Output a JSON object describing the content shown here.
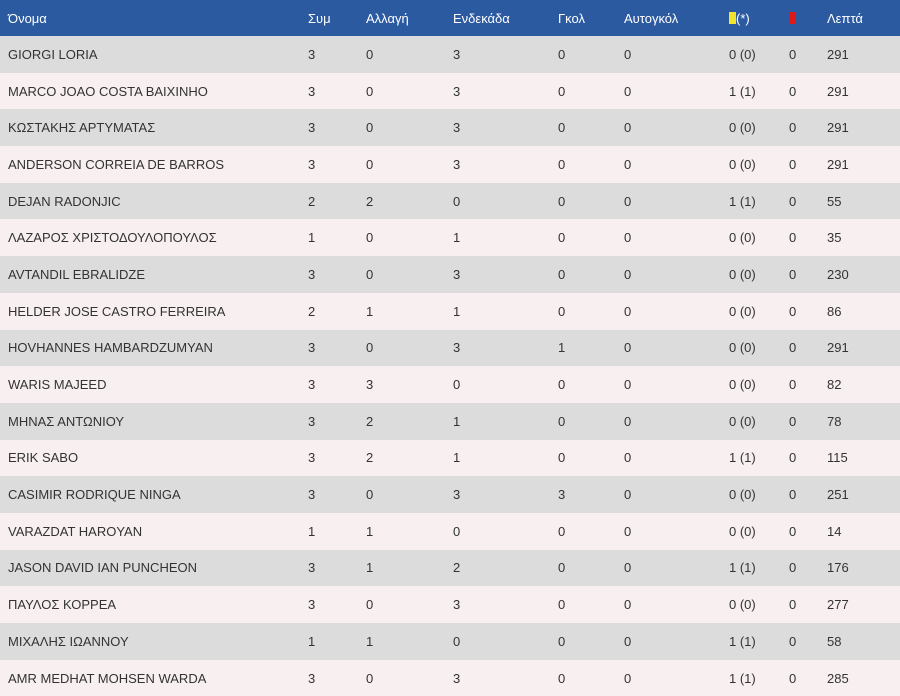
{
  "table": {
    "headers": {
      "name": "Όνομα",
      "apps": "Συμ",
      "subs": "Αλλαγή",
      "starts": "Ενδεκάδα",
      "goals": "Γκολ",
      "own_goals": "Αυτογκόλ",
      "yellow_suffix": "(*)",
      "yellow_icon": "yellow-card-icon",
      "red_icon": "red-card-icon",
      "minutes": "Λεπτά"
    },
    "colors": {
      "header_bg": "#2c5aa0",
      "row_odd": "#dcdcdc",
      "row_even": "#f7eff0",
      "yellow_card": "#f1e42a",
      "red_card": "#e01818"
    },
    "rows": [
      {
        "name": "GIORGI LORIA",
        "apps": "3",
        "subs": "0",
        "starts": "3",
        "goals": "0",
        "own_goals": "0",
        "yellow": "0 (0)",
        "red": "0",
        "minutes": "291"
      },
      {
        "name": "MARCO JOAO COSTA BAIXINHO",
        "apps": "3",
        "subs": "0",
        "starts": "3",
        "goals": "0",
        "own_goals": "0",
        "yellow": "1 (1)",
        "red": "0",
        "minutes": "291"
      },
      {
        "name": "ΚΩΣΤΑΚΗΣ ΑΡΤΥΜΑΤΑΣ",
        "apps": "3",
        "subs": "0",
        "starts": "3",
        "goals": "0",
        "own_goals": "0",
        "yellow": "0 (0)",
        "red": "0",
        "minutes": "291"
      },
      {
        "name": "ANDERSON CORREIA DE BARROS",
        "apps": "3",
        "subs": "0",
        "starts": "3",
        "goals": "0",
        "own_goals": "0",
        "yellow": "0 (0)",
        "red": "0",
        "minutes": "291"
      },
      {
        "name": "DEJAN RADONJIC",
        "apps": "2",
        "subs": "2",
        "starts": "0",
        "goals": "0",
        "own_goals": "0",
        "yellow": "1 (1)",
        "red": "0",
        "minutes": "55"
      },
      {
        "name": "ΛΑΖΑΡΟΣ ΧΡΙΣΤΟΔΟΥΛΟΠΟΥΛΟΣ",
        "apps": "1",
        "subs": "0",
        "starts": "1",
        "goals": "0",
        "own_goals": "0",
        "yellow": "0 (0)",
        "red": "0",
        "minutes": "35"
      },
      {
        "name": "AVTANDIL EBRALIDZE",
        "apps": "3",
        "subs": "0",
        "starts": "3",
        "goals": "0",
        "own_goals": "0",
        "yellow": "0 (0)",
        "red": "0",
        "minutes": "230"
      },
      {
        "name": "HELDER JOSE CASTRO FERREIRA",
        "apps": "2",
        "subs": "1",
        "starts": "1",
        "goals": "0",
        "own_goals": "0",
        "yellow": "0 (0)",
        "red": "0",
        "minutes": "86"
      },
      {
        "name": "HOVHANNES HAMBARDZUMYAN",
        "apps": "3",
        "subs": "0",
        "starts": "3",
        "goals": "1",
        "own_goals": "0",
        "yellow": "0 (0)",
        "red": "0",
        "minutes": "291"
      },
      {
        "name": "WARIS MAJEED",
        "apps": "3",
        "subs": "3",
        "starts": "0",
        "goals": "0",
        "own_goals": "0",
        "yellow": "0 (0)",
        "red": "0",
        "minutes": "82"
      },
      {
        "name": "ΜΗΝΑΣ ΑΝΤΩΝΙΟΥ",
        "apps": "3",
        "subs": "2",
        "starts": "1",
        "goals": "0",
        "own_goals": "0",
        "yellow": "0 (0)",
        "red": "0",
        "minutes": "78"
      },
      {
        "name": "ERIK SABO",
        "apps": "3",
        "subs": "2",
        "starts": "1",
        "goals": "0",
        "own_goals": "0",
        "yellow": "1 (1)",
        "red": "0",
        "minutes": "115"
      },
      {
        "name": "CASIMIR RODRIQUE NINGA",
        "apps": "3",
        "subs": "0",
        "starts": "3",
        "goals": "3",
        "own_goals": "0",
        "yellow": "0 (0)",
        "red": "0",
        "minutes": "251"
      },
      {
        "name": "VARAZDAT HAROYAN",
        "apps": "1",
        "subs": "1",
        "starts": "0",
        "goals": "0",
        "own_goals": "0",
        "yellow": "0 (0)",
        "red": "0",
        "minutes": "14"
      },
      {
        "name": "JASON DAVID IAN PUNCHEON",
        "apps": "3",
        "subs": "1",
        "starts": "2",
        "goals": "0",
        "own_goals": "0",
        "yellow": "1 (1)",
        "red": "0",
        "minutes": "176"
      },
      {
        "name": "ΠΑΥΛΟΣ ΚΟΡΡΕΑ",
        "apps": "3",
        "subs": "0",
        "starts": "3",
        "goals": "0",
        "own_goals": "0",
        "yellow": "0 (0)",
        "red": "0",
        "minutes": "277"
      },
      {
        "name": "ΜΙΧΑΛΗΣ ΙΩΑΝΝΟΥ",
        "apps": "1",
        "subs": "1",
        "starts": "0",
        "goals": "0",
        "own_goals": "0",
        "yellow": "1 (1)",
        "red": "0",
        "minutes": "58"
      },
      {
        "name": "AMR MEDHAT MOHSEN WARDA",
        "apps": "3",
        "subs": "0",
        "starts": "3",
        "goals": "0",
        "own_goals": "0",
        "yellow": "1 (1)",
        "red": "0",
        "minutes": "285"
      }
    ]
  }
}
